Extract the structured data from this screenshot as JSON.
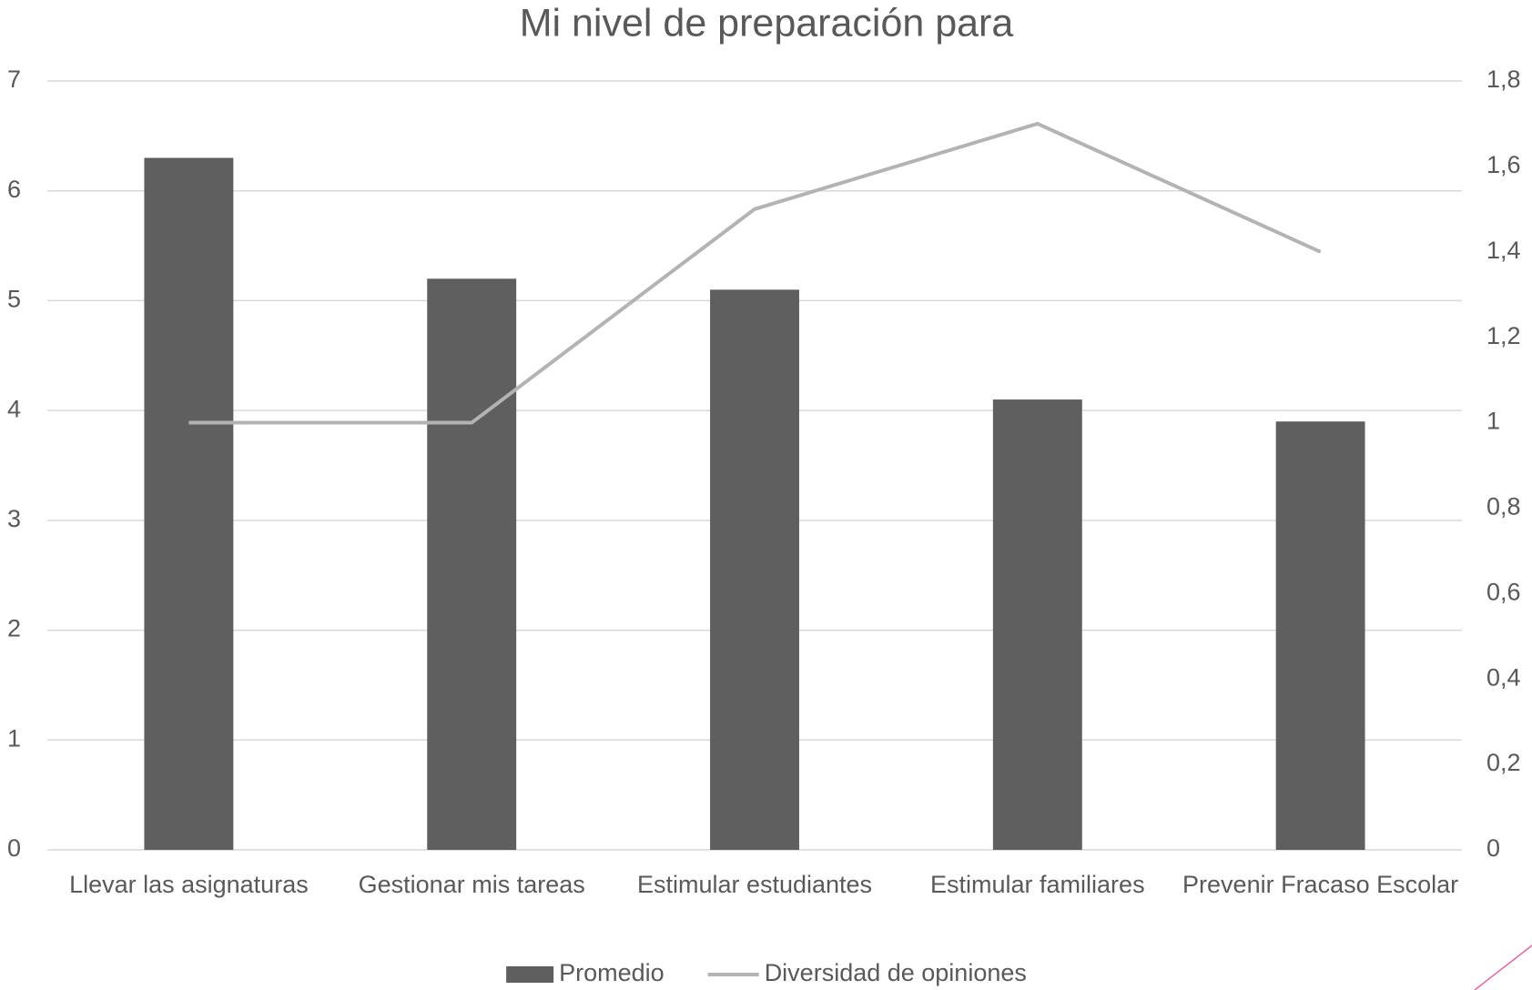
{
  "chart_data": {
    "type": "bar",
    "title": "Mi nivel de preparación para",
    "categories": [
      "Llevar las asignaturas",
      "Gestionar mis tareas",
      "Estimular estudiantes",
      "Estimular familiares",
      "Prevenir Fracaso Escolar"
    ],
    "series": [
      {
        "name": "Promedio",
        "type": "bar",
        "color": "#5f5f5f",
        "values": [
          6.3,
          5.2,
          5.1,
          4.1,
          3.9
        ]
      },
      {
        "name": "Diversidad de opiniones",
        "type": "line",
        "axis": "y2",
        "color": "#b3b3b3",
        "values": [
          1.0,
          1.0,
          1.5,
          1.7,
          1.4
        ]
      }
    ],
    "ylim": [
      0,
      7
    ],
    "yticks": [
      0,
      1,
      2,
      3,
      4,
      5,
      6,
      7
    ],
    "y2lim": [
      0,
      1.8
    ],
    "y2ticks": [
      0,
      {
        "value": 0.2,
        "label": "0,2"
      },
      {
        "value": 0.4,
        "label": "0,4"
      },
      {
        "value": 0.6,
        "label": "0,6"
      },
      {
        "value": 0.8,
        "label": "0,8"
      },
      1,
      {
        "value": 1.2,
        "label": "1,2"
      },
      {
        "value": 1.4,
        "label": "1,4"
      },
      {
        "value": 1.6,
        "label": "1,6"
      },
      {
        "value": 1.8,
        "label": "1,8"
      }
    ],
    "grid": true,
    "legend": "bottom"
  }
}
